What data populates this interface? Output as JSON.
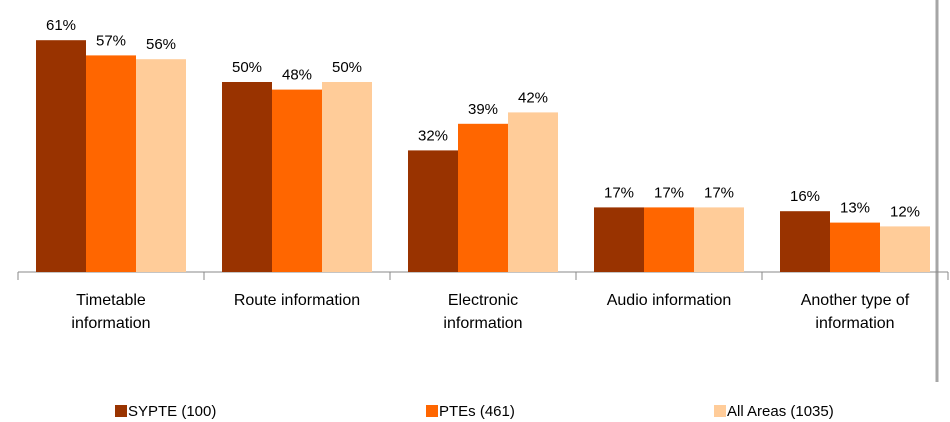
{
  "chart_data": {
    "type": "bar",
    "categories": [
      "Timetable information",
      "Route information",
      "Electronic information",
      "Audio information",
      "Another type of information"
    ],
    "series": [
      {
        "name": "SYPTE (100)",
        "color": "#993300",
        "values": [
          61,
          50,
          32,
          17,
          16
        ],
        "value_labels": [
          "61%",
          "50%",
          "32%",
          "17%",
          "16%"
        ]
      },
      {
        "name": "PTEs (461)",
        "color": "#ff6600",
        "values": [
          57,
          48,
          39,
          17,
          13
        ],
        "value_labels": [
          "57%",
          "48%",
          "39%",
          "17%",
          "13%"
        ]
      },
      {
        "name": "All Areas (1035)",
        "color": "#ffcc99",
        "values": [
          56,
          50,
          42,
          17,
          12
        ],
        "value_labels": [
          "56%",
          "50%",
          "42%",
          "17%",
          "12%"
        ]
      }
    ],
    "legend": "bottom"
  }
}
